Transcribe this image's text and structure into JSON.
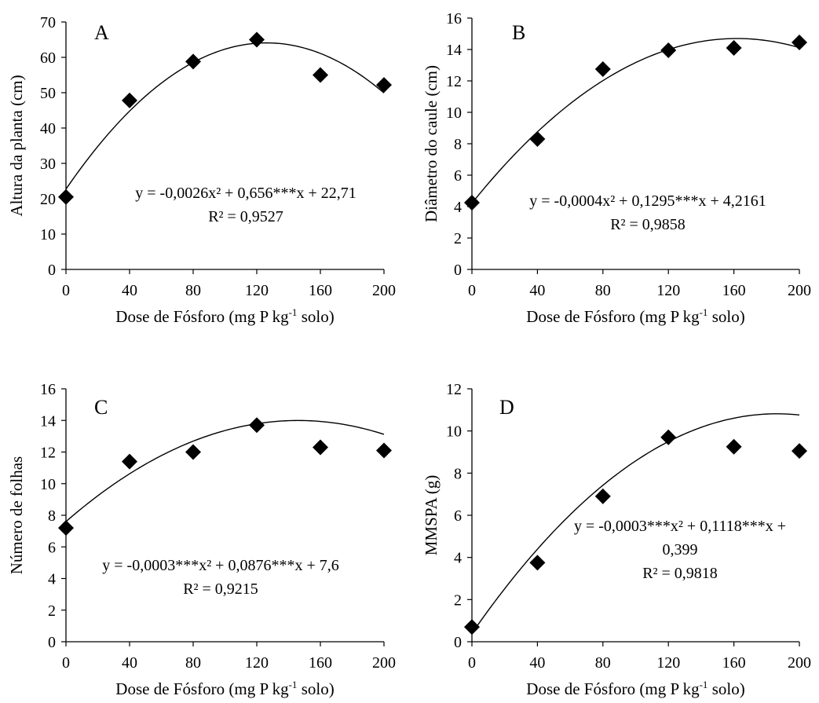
{
  "chart_data": [
    {
      "type": "scatter",
      "panel_label": "A",
      "xlabel": "Dose de Fósforo (mg P kg-1 solo)",
      "xlabel_parts": {
        "main": "Dose de Fósforo (mg P kg",
        "sup": "-1",
        "tail": " solo)"
      },
      "ylabel": "Altura da planta (cm)",
      "xlim": [
        0,
        200
      ],
      "xticks": [
        0,
        40,
        80,
        120,
        160,
        200
      ],
      "ylim": [
        0,
        70
      ],
      "yticks": [
        0,
        10,
        20,
        30,
        40,
        50,
        60,
        70
      ],
      "x": [
        0,
        40,
        80,
        120,
        160,
        200
      ],
      "y": [
        20.5,
        47.8,
        58.8,
        65.0,
        55.0,
        52.2
      ],
      "trendline": {
        "type": "quadratic",
        "a": -0.0026,
        "b": 0.656,
        "c": 22.71
      },
      "equation_lines": [
        "y = -0,0026x² + 0,656***x + 22,71",
        "R² = 0,9527"
      ],
      "grid": false,
      "legend": "none"
    },
    {
      "type": "scatter",
      "panel_label": "B",
      "xlabel": "Dose de Fósforo (mg P kg-1 solo)",
      "xlabel_parts": {
        "main": "Dose de Fósforo (mg P kg",
        "sup": "-1",
        "tail": " solo)"
      },
      "ylabel": "Diâmetro do caule (cm)",
      "xlim": [
        0,
        200
      ],
      "xticks": [
        0,
        40,
        80,
        120,
        160,
        200
      ],
      "ylim": [
        0,
        16
      ],
      "yticks": [
        0,
        2,
        4,
        6,
        8,
        10,
        12,
        14,
        16
      ],
      "x": [
        0,
        40,
        80,
        120,
        160,
        200
      ],
      "y": [
        4.25,
        8.3,
        12.75,
        13.95,
        14.1,
        14.45
      ],
      "trendline": {
        "type": "quadratic",
        "a": -0.0004,
        "b": 0.1295,
        "c": 4.2161
      },
      "equation_lines": [
        "y = -0,0004x² + 0,1295***x + 4,2161",
        "R² = 0,9858"
      ],
      "grid": false,
      "legend": "none"
    },
    {
      "type": "scatter",
      "panel_label": "C",
      "xlabel": "Dose de Fósforo (mg P kg-1 solo)",
      "xlabel_parts": {
        "main": "Dose de Fósforo (mg P kg",
        "sup": "-1",
        "tail": " solo)"
      },
      "ylabel": "Número de folhas",
      "xlim": [
        0,
        200
      ],
      "xticks": [
        0,
        40,
        80,
        120,
        160,
        200
      ],
      "ylim": [
        0,
        16
      ],
      "yticks": [
        0,
        2,
        4,
        6,
        8,
        10,
        12,
        14,
        16
      ],
      "x": [
        0,
        40,
        80,
        120,
        160,
        200
      ],
      "y": [
        7.2,
        11.4,
        12.0,
        13.7,
        12.3,
        12.1
      ],
      "trendline": {
        "type": "quadratic",
        "a": -0.0003,
        "b": 0.0876,
        "c": 7.6
      },
      "equation_lines": [
        "y = -0,0003***x² + 0,0876***x + 7,6",
        "R² = 0,9215"
      ],
      "grid": false,
      "legend": "none"
    },
    {
      "type": "scatter",
      "panel_label": "D",
      "xlabel": "Dose de Fósforo (mg P kg-1 solo)",
      "xlabel_parts": {
        "main": "Dose de Fósforo (mg P kg",
        "sup": "-1",
        "tail": " solo)"
      },
      "ylabel": "MMSPA (g)",
      "xlim": [
        0,
        200
      ],
      "xticks": [
        0,
        40,
        80,
        120,
        160,
        200
      ],
      "ylim": [
        0,
        12
      ],
      "yticks": [
        0,
        2,
        4,
        6,
        8,
        10,
        12
      ],
      "x": [
        0,
        40,
        80,
        120,
        160,
        200
      ],
      "y": [
        0.7,
        3.75,
        6.9,
        9.7,
        9.25,
        9.05
      ],
      "trendline": {
        "type": "quadratic",
        "a": -0.0003,
        "b": 0.1118,
        "c": 0.399
      },
      "equation_lines": [
        "y = -0,0003***x² + 0,1118***x +",
        "0,399",
        "R² = 0,9818"
      ],
      "grid": false,
      "legend": "none"
    }
  ]
}
